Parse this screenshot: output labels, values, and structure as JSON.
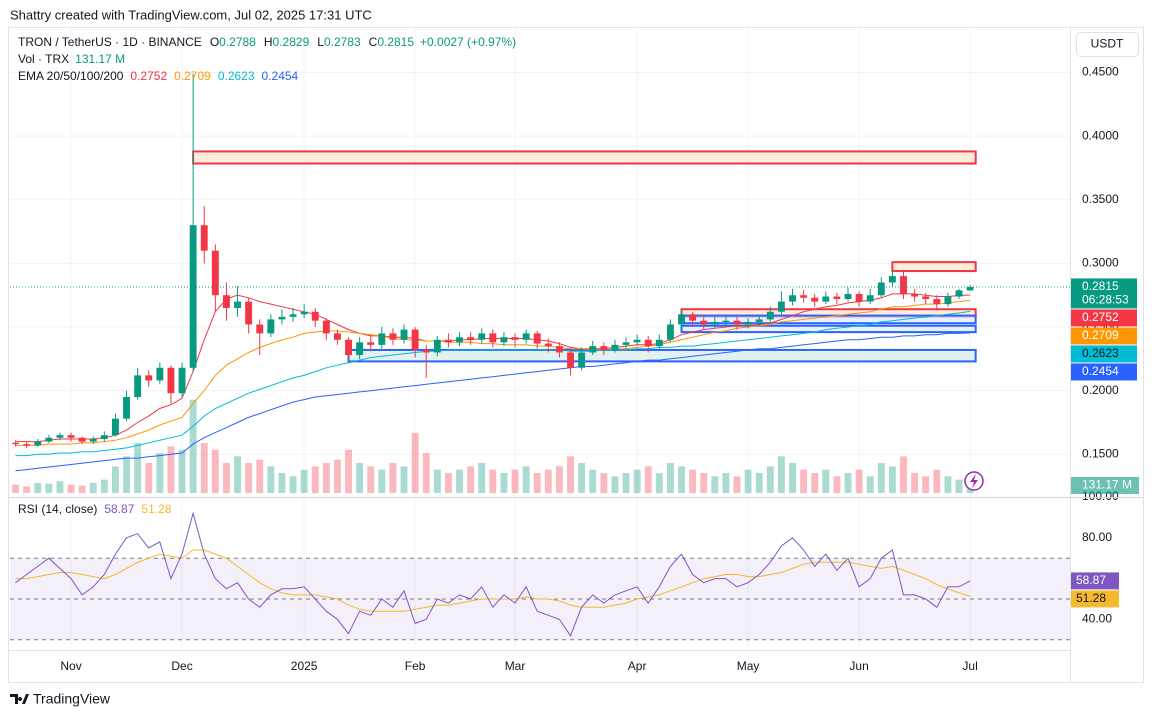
{
  "watermark": "Shattry created with TradingView.com, Jul 02, 2025 17:31 UTC",
  "footer_logo": "TradingView",
  "currency_button": "USDT",
  "chart_data": {
    "type": "candlestick",
    "symbol": "TRON / TetherUS · 1D · BINANCE",
    "legend_keys": [
      "O",
      "H",
      "L",
      "C"
    ],
    "change_label": "+0.0027 (+0.97%)",
    "up_color": "#089981",
    "down_color": "#f23645",
    "grid": true,
    "xlim": [
      -0.5,
      95
    ],
    "xticks": [
      {
        "value": 5,
        "label": "Nov"
      },
      {
        "value": 15,
        "label": "Dec"
      },
      {
        "value": 26,
        "label": "2025"
      },
      {
        "value": 36,
        "label": "Feb"
      },
      {
        "value": 45,
        "label": "Mar"
      },
      {
        "value": 56,
        "label": "Apr"
      },
      {
        "value": 66,
        "label": "May"
      },
      {
        "value": 76,
        "label": "Jun"
      },
      {
        "value": 86,
        "label": "Jul"
      }
    ],
    "ylim": [
      0.118,
      0.485
    ],
    "yticks": [
      {
        "value": 0.45,
        "label": "0.4500"
      },
      {
        "value": 0.4,
        "label": "0.4000"
      },
      {
        "value": 0.35,
        "label": "0.3500"
      },
      {
        "value": 0.3,
        "label": "0.3000"
      },
      {
        "value": 0.25,
        "label": "0.2500"
      },
      {
        "value": 0.2,
        "label": "0.2000"
      },
      {
        "value": 0.15,
        "label": "0.1500"
      }
    ],
    "open": [
      0.159,
      0.158,
      0.157,
      0.16,
      0.163,
      0.165,
      0.163,
      0.16,
      0.162,
      0.165,
      0.178,
      0.195,
      0.212,
      0.208,
      0.218,
      0.198,
      0.218,
      0.33,
      0.31,
      0.275,
      0.265,
      0.27,
      0.252,
      0.245,
      0.256,
      0.258,
      0.26,
      0.262,
      0.255,
      0.245,
      0.24,
      0.228,
      0.238,
      0.236,
      0.245,
      0.24,
      0.248,
      0.232,
      0.23,
      0.24,
      0.238,
      0.242,
      0.24,
      0.245,
      0.238,
      0.242,
      0.24,
      0.245,
      0.237,
      0.235,
      0.23,
      0.218,
      0.23,
      0.235,
      0.232,
      0.236,
      0.238,
      0.24,
      0.235,
      0.24,
      0.252,
      0.26,
      0.255,
      0.252,
      0.254,
      0.255,
      0.252,
      0.254,
      0.256,
      0.262,
      0.27,
      0.275,
      0.273,
      0.27,
      0.274,
      0.272,
      0.276,
      0.27,
      0.275,
      0.285,
      0.29,
      0.276,
      0.274,
      0.272,
      0.268,
      0.274,
      0.2788
    ],
    "high": [
      0.161,
      0.16,
      0.162,
      0.165,
      0.167,
      0.167,
      0.164,
      0.164,
      0.168,
      0.182,
      0.2,
      0.218,
      0.216,
      0.222,
      0.22,
      0.222,
      0.449,
      0.345,
      0.315,
      0.285,
      0.282,
      0.273,
      0.256,
      0.26,
      0.264,
      0.265,
      0.268,
      0.265,
      0.257,
      0.248,
      0.242,
      0.242,
      0.244,
      0.25,
      0.249,
      0.252,
      0.25,
      0.236,
      0.243,
      0.245,
      0.246,
      0.246,
      0.249,
      0.248,
      0.246,
      0.245,
      0.248,
      0.247,
      0.241,
      0.238,
      0.233,
      0.234,
      0.239,
      0.238,
      0.24,
      0.242,
      0.244,
      0.243,
      0.244,
      0.256,
      0.264,
      0.262,
      0.258,
      0.258,
      0.259,
      0.258,
      0.257,
      0.259,
      0.266,
      0.278,
      0.28,
      0.279,
      0.276,
      0.278,
      0.277,
      0.281,
      0.278,
      0.28,
      0.289,
      0.294,
      0.295,
      0.28,
      0.277,
      0.275,
      0.277,
      0.28,
      0.2829
    ],
    "low": [
      0.156,
      0.155,
      0.156,
      0.159,
      0.161,
      0.16,
      0.158,
      0.158,
      0.16,
      0.164,
      0.176,
      0.193,
      0.203,
      0.205,
      0.19,
      0.195,
      0.215,
      0.3,
      0.262,
      0.255,
      0.258,
      0.245,
      0.228,
      0.242,
      0.252,
      0.254,
      0.257,
      0.25,
      0.24,
      0.236,
      0.224,
      0.225,
      0.231,
      0.233,
      0.236,
      0.237,
      0.226,
      0.21,
      0.227,
      0.234,
      0.235,
      0.236,
      0.237,
      0.234,
      0.235,
      0.234,
      0.237,
      0.233,
      0.23,
      0.226,
      0.212,
      0.216,
      0.228,
      0.228,
      0.23,
      0.233,
      0.235,
      0.23,
      0.233,
      0.238,
      0.25,
      0.25,
      0.248,
      0.249,
      0.25,
      0.248,
      0.249,
      0.251,
      0.254,
      0.26,
      0.267,
      0.269,
      0.266,
      0.268,
      0.268,
      0.27,
      0.266,
      0.268,
      0.273,
      0.282,
      0.272,
      0.27,
      0.268,
      0.263,
      0.266,
      0.272,
      0.2783
    ],
    "close": [
      0.158,
      0.157,
      0.16,
      0.163,
      0.165,
      0.163,
      0.16,
      0.162,
      0.165,
      0.178,
      0.195,
      0.212,
      0.208,
      0.218,
      0.198,
      0.218,
      0.33,
      0.31,
      0.275,
      0.265,
      0.27,
      0.252,
      0.245,
      0.256,
      0.258,
      0.26,
      0.262,
      0.255,
      0.245,
      0.24,
      0.228,
      0.238,
      0.236,
      0.245,
      0.24,
      0.248,
      0.232,
      0.23,
      0.24,
      0.238,
      0.242,
      0.24,
      0.245,
      0.238,
      0.242,
      0.24,
      0.245,
      0.237,
      0.235,
      0.23,
      0.218,
      0.23,
      0.235,
      0.232,
      0.236,
      0.238,
      0.24,
      0.235,
      0.24,
      0.252,
      0.26,
      0.255,
      0.252,
      0.254,
      0.255,
      0.252,
      0.254,
      0.256,
      0.262,
      0.27,
      0.275,
      0.273,
      0.27,
      0.274,
      0.272,
      0.276,
      0.27,
      0.275,
      0.285,
      0.29,
      0.276,
      0.274,
      0.272,
      0.268,
      0.274,
      0.2788,
      0.2815
    ],
    "last_price_countdown": "06:28:53",
    "ema": {
      "label": "EMA 20/50/100/200",
      "series": [
        {
          "color": "#f23645",
          "values": [
            0.16,
            0.16,
            0.16,
            0.161,
            0.162,
            0.162,
            0.162,
            0.162,
            0.163,
            0.165,
            0.169,
            0.175,
            0.18,
            0.186,
            0.189,
            0.194,
            0.215,
            0.24,
            0.262,
            0.272,
            0.275,
            0.273,
            0.27,
            0.268,
            0.266,
            0.264,
            0.262,
            0.26,
            0.256,
            0.252,
            0.248,
            0.245,
            0.243,
            0.243,
            0.242,
            0.242,
            0.241,
            0.239,
            0.239,
            0.239,
            0.24,
            0.24,
            0.241,
            0.241,
            0.241,
            0.241,
            0.241,
            0.24,
            0.239,
            0.237,
            0.234,
            0.233,
            0.233,
            0.233,
            0.234,
            0.235,
            0.236,
            0.236,
            0.237,
            0.24,
            0.244,
            0.246,
            0.248,
            0.249,
            0.25,
            0.251,
            0.251,
            0.252,
            0.253,
            0.256,
            0.259,
            0.262,
            0.264,
            0.266,
            0.267,
            0.269,
            0.27,
            0.271,
            0.273,
            0.276,
            0.276,
            0.276,
            0.275,
            0.274,
            0.274,
            0.2748,
            0.2752
          ]
        },
        {
          "color": "#ff9800",
          "values": [
            0.157,
            0.157,
            0.157,
            0.158,
            0.158,
            0.158,
            0.159,
            0.159,
            0.16,
            0.161,
            0.163,
            0.166,
            0.169,
            0.173,
            0.176,
            0.179,
            0.19,
            0.2,
            0.212,
            0.22,
            0.225,
            0.23,
            0.234,
            0.237,
            0.24,
            0.242,
            0.245,
            0.246,
            0.247,
            0.247,
            0.246,
            0.245,
            0.244,
            0.243,
            0.241,
            0.24,
            0.24,
            0.239,
            0.239,
            0.238,
            0.238,
            0.238,
            0.237,
            0.237,
            0.236,
            0.236,
            0.236,
            0.235,
            0.235,
            0.234,
            0.233,
            0.233,
            0.232,
            0.232,
            0.233,
            0.233,
            0.234,
            0.235,
            0.236,
            0.238,
            0.24,
            0.242,
            0.244,
            0.246,
            0.247,
            0.249,
            0.25,
            0.251,
            0.252,
            0.254,
            0.255,
            0.256,
            0.257,
            0.258,
            0.259,
            0.26,
            0.261,
            0.262,
            0.264,
            0.266,
            0.266,
            0.267,
            0.268,
            0.268,
            0.269,
            0.27,
            0.2709
          ]
        },
        {
          "color": "#00bcd4",
          "values": [
            0.149,
            0.149,
            0.15,
            0.15,
            0.151,
            0.151,
            0.152,
            0.152,
            0.153,
            0.154,
            0.155,
            0.157,
            0.159,
            0.161,
            0.163,
            0.165,
            0.172,
            0.18,
            0.186,
            0.19,
            0.194,
            0.198,
            0.201,
            0.204,
            0.207,
            0.21,
            0.212,
            0.215,
            0.218,
            0.22,
            0.222,
            0.224,
            0.226,
            0.227,
            0.228,
            0.229,
            0.23,
            0.231,
            0.231,
            0.232,
            0.232,
            0.232,
            0.232,
            0.232,
            0.232,
            0.232,
            0.232,
            0.232,
            0.232,
            0.232,
            0.231,
            0.231,
            0.231,
            0.232,
            0.232,
            0.232,
            0.233,
            0.233,
            0.234,
            0.234,
            0.235,
            0.235,
            0.236,
            0.237,
            0.238,
            0.239,
            0.24,
            0.241,
            0.242,
            0.243,
            0.244,
            0.245,
            0.246,
            0.248,
            0.249,
            0.25,
            0.251,
            0.252,
            0.254,
            0.255,
            0.256,
            0.257,
            0.258,
            0.259,
            0.26,
            0.261,
            0.2623
          ]
        },
        {
          "color": "#2962ff",
          "values": [
            0.137,
            0.138,
            0.139,
            0.14,
            0.141,
            0.142,
            0.143,
            0.144,
            0.145,
            0.146,
            0.147,
            0.147,
            0.148,
            0.149,
            0.15,
            0.151,
            0.158,
            0.163,
            0.167,
            0.171,
            0.175,
            0.179,
            0.182,
            0.185,
            0.188,
            0.191,
            0.193,
            0.195,
            0.196,
            0.197,
            0.198,
            0.199,
            0.2,
            0.201,
            0.202,
            0.203,
            0.204,
            0.205,
            0.206,
            0.207,
            0.208,
            0.209,
            0.21,
            0.211,
            0.212,
            0.213,
            0.214,
            0.215,
            0.216,
            0.217,
            0.218,
            0.219,
            0.219,
            0.22,
            0.221,
            0.222,
            0.223,
            0.224,
            0.224,
            0.225,
            0.226,
            0.227,
            0.228,
            0.229,
            0.23,
            0.231,
            0.232,
            0.233,
            0.233,
            0.234,
            0.235,
            0.236,
            0.237,
            0.238,
            0.239,
            0.24,
            0.24,
            0.241,
            0.242,
            0.242,
            0.243,
            0.243,
            0.244,
            0.244,
            0.245,
            0.245,
            0.2454
          ]
        }
      ]
    },
    "zones": [
      {
        "start": 16,
        "low": 0.3785,
        "high": 0.388,
        "color": "#f23645",
        "fill": "#fde7cf"
      },
      {
        "start": 79,
        "low": 0.294,
        "high": 0.301,
        "color": "#f23645",
        "fill": "#fde7cf"
      },
      {
        "start": 60,
        "low": 0.258,
        "high": 0.264,
        "color": "#f23645",
        "fill": "#fde7cf"
      },
      {
        "start": 60,
        "low": 0.253,
        "high": 0.259,
        "color": "#2962ff",
        "fill": "#e3ecfd"
      },
      {
        "start": 60,
        "low": 0.246,
        "high": 0.251,
        "color": "#2962ff",
        "fill": "#e3ecfd"
      },
      {
        "start": 30,
        "low": 0.223,
        "high": 0.232,
        "color": "#2962ff",
        "fill": "#d9ece9"
      }
    ],
    "volume": {
      "label": "Vol · TRX",
      "last_value_label": "131.17 M",
      "vlim": [
        0,
        3000
      ],
      "values": [
        250,
        200,
        300,
        280,
        350,
        250,
        220,
        300,
        400,
        800,
        1100,
        1500,
        900,
        1200,
        1400,
        1300,
        2800,
        1500,
        1300,
        900,
        1100,
        900,
        1000,
        800,
        600,
        500,
        700,
        800,
        900,
        1000,
        1300,
        900,
        800,
        700,
        900,
        800,
        1800,
        1200,
        700,
        600,
        700,
        800,
        900,
        700,
        600,
        700,
        800,
        600,
        700,
        800,
        1100,
        900,
        700,
        600,
        500,
        600,
        700,
        800,
        600,
        900,
        800,
        700,
        600,
        500,
        600,
        500,
        700,
        600,
        800,
        1100,
        900,
        700,
        600,
        700,
        500,
        600,
        700,
        500,
        900,
        800,
        1100,
        600,
        500,
        700,
        500,
        400,
        131.17
      ]
    },
    "rsi": {
      "label": "RSI (14, close)",
      "color": "#7e57c2",
      "ma_color": "#f5b82e",
      "ylim": [
        25,
        100
      ],
      "yticks": [
        {
          "value": 100,
          "label": "100.00"
        },
        {
          "value": 80,
          "label": "80.00"
        },
        {
          "value": 40,
          "label": "40.00"
        }
      ],
      "bands": [
        70,
        50,
        30
      ],
      "values": [
        58,
        62,
        66,
        70,
        65,
        60,
        52,
        56,
        62,
        72,
        80,
        82,
        75,
        78,
        60,
        72,
        92,
        72,
        60,
        55,
        58,
        50,
        46,
        52,
        55,
        55,
        56,
        50,
        44,
        40,
        33,
        44,
        42,
        50,
        46,
        54,
        38,
        40,
        50,
        48,
        52,
        50,
        56,
        46,
        52,
        48,
        56,
        44,
        42,
        40,
        32,
        46,
        52,
        48,
        52,
        54,
        56,
        48,
        56,
        66,
        72,
        62,
        58,
        60,
        60,
        56,
        58,
        62,
        68,
        76,
        80,
        74,
        66,
        72,
        64,
        70,
        56,
        60,
        70,
        74,
        52,
        52,
        50,
        46,
        56,
        56,
        58.87
      ],
      "ma_values": [
        60,
        60,
        61,
        62,
        63,
        63,
        62,
        61,
        60,
        62,
        65,
        68,
        70,
        72,
        71,
        70,
        74,
        74,
        72,
        70,
        66,
        62,
        58,
        55,
        53,
        52,
        52,
        52,
        51,
        50,
        47,
        45,
        44,
        44,
        44,
        44,
        45,
        46,
        47,
        47,
        48,
        49,
        50,
        50,
        50,
        50,
        51,
        50,
        50,
        49,
        47,
        46,
        46,
        46,
        47,
        48,
        50,
        51,
        52,
        54,
        56,
        58,
        60,
        61,
        62,
        62,
        61,
        61,
        62,
        63,
        65,
        67,
        68,
        68,
        68,
        68,
        67,
        66,
        65,
        66,
        64,
        62,
        60,
        57,
        55,
        53,
        51.28
      ]
    }
  }
}
